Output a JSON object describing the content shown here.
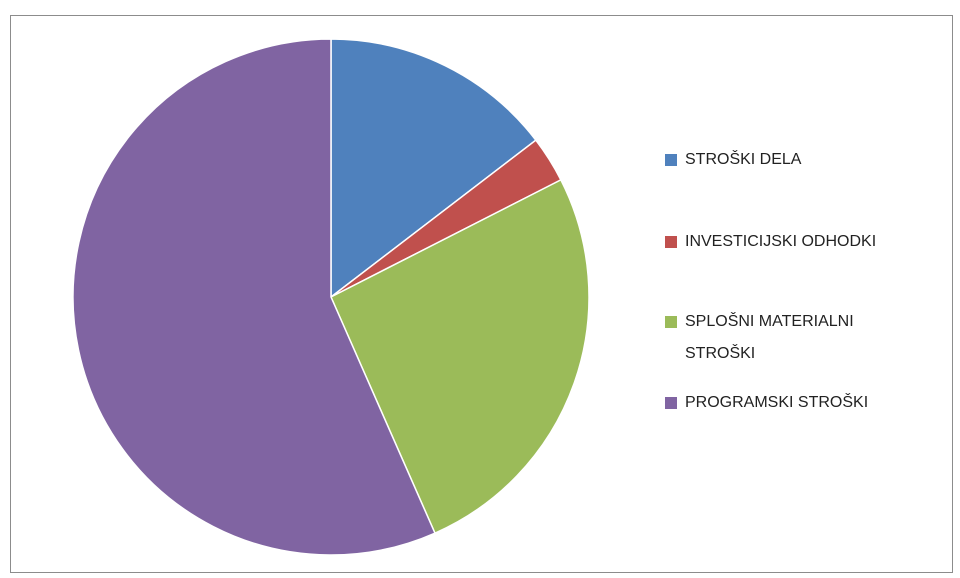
{
  "chart_data": {
    "type": "pie",
    "categories": [
      "STROŠKI DELA",
      "INVESTICIJSKI ODHODKI",
      "SPLOŠNI MATERIALNI STROŠKI",
      "PROGRAMSKI STROŠKI"
    ],
    "values": [
      14.6,
      2.9,
      25.9,
      56.6
    ],
    "colors": [
      "#4f81bd",
      "#c0504d",
      "#9bbb59",
      "#8064a2"
    ],
    "legend": "right"
  }
}
